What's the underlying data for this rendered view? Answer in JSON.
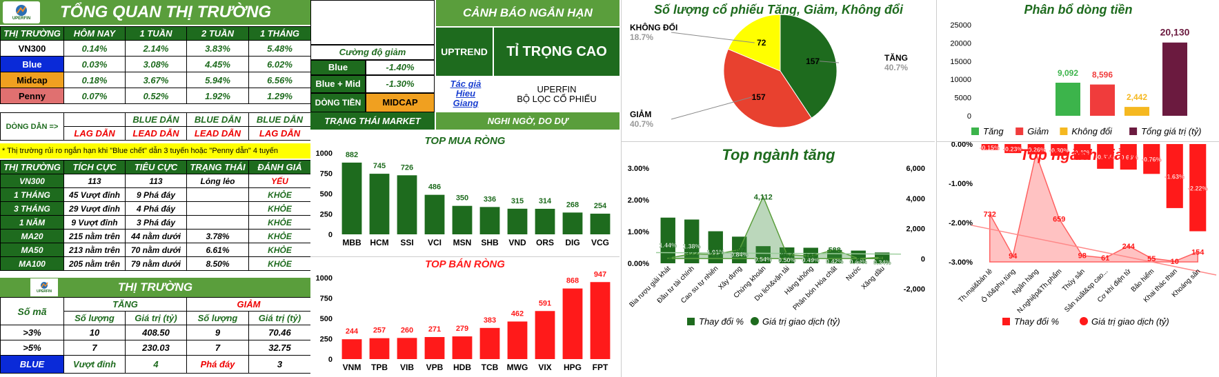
{
  "overview": {
    "logo": "UPERFIN",
    "title": "TỔNG QUAN THỊ TRƯỜNG",
    "headers": [
      "THỊ TRƯỜNG",
      "HÔM NAY",
      "1 TUẦN",
      "2 TUẦN",
      "1 THÁNG"
    ],
    "rows": [
      {
        "name": "VN300",
        "vals": [
          "0.14%",
          "2.14%",
          "3.83%",
          "5.48%"
        ],
        "color": "#ffffff",
        "text": "#000000"
      },
      {
        "name": "Blue",
        "vals": [
          "0.03%",
          "3.08%",
          "4.45%",
          "6.02%"
        ],
        "color": "#0a2ad8",
        "text": "#ffffff"
      },
      {
        "name": "Midcap",
        "vals": [
          "0.18%",
          "3.67%",
          "5.94%",
          "6.56%"
        ],
        "color": "#f0a020",
        "text": "#000000"
      },
      {
        "name": "Penny",
        "vals": [
          "0.07%",
          "0.52%",
          "1.92%",
          "1.29%"
        ],
        "color": "#e07070",
        "text": "#000000"
      }
    ],
    "leader_label": "DÒNG DẪN =>",
    "leader_top": [
      "",
      "BLUE DẪN",
      "BLUE DẪN",
      "BLUE DẪN"
    ],
    "leader_bottom": [
      "LAG DẪN",
      "LEAD DẪN",
      "LEAD DẪN",
      "LAG DẪN"
    ],
    "note": "* Thị trường rủi ro ngắn hạn khi \"Blue chết\" dẫn 3 tuyến hoặc \"Penny dẫn\" 4 tuyến"
  },
  "breadth": {
    "headers": [
      "THỊ TRƯỜNG",
      "TÍCH CỰC",
      "TIÊU CỰC",
      "TRẠNG THÁI",
      "ĐÁNH GIÁ"
    ],
    "rows": [
      [
        "VN300",
        "113",
        "113",
        "Lỏng lẻo",
        "YẾU"
      ],
      [
        "1 THÁNG",
        "45 Vượt đỉnh",
        "9 Phá đáy",
        "",
        "KHỎE"
      ],
      [
        "3 THÁNG",
        "29 Vượt đỉnh",
        "4 Phá đáy",
        "",
        "KHỎE"
      ],
      [
        "1 NĂM",
        "9 Vượt đỉnh",
        "3 Phá đáy",
        "",
        "KHỎE"
      ],
      [
        "MA20",
        "215 nằm trên",
        "44 nằm dưới",
        "3.78%",
        "KHỎE"
      ],
      [
        "MA50",
        "213 nằm trên",
        "70 nằm dưới",
        "6.61%",
        "KHỎE"
      ],
      [
        "MA100",
        "205 nằm trên",
        "79 nằm dưới",
        "8.50%",
        "KHỎE"
      ]
    ]
  },
  "market": {
    "logo": "UPERFIN",
    "title": "THỊ TRƯỜNG",
    "inc": "TĂNG",
    "dec": "GIẢM",
    "code_label": "Số mã",
    "sub": [
      "Số lượng",
      "Giá trị (tỷ)",
      "Số lượng",
      "Giá trị (tỷ)"
    ],
    "rows": [
      {
        "k": ">3%",
        "v": [
          "10",
          "408.50",
          "9",
          "70.46"
        ]
      },
      {
        "k": ">5%",
        "v": [
          "7",
          "230.03",
          "7",
          "32.75"
        ]
      }
    ],
    "blue": "BLUE",
    "vuot": "Vượt đỉnh",
    "vuot_v": "4",
    "pha": "Phá đáy",
    "pha_v": "3"
  },
  "warning": {
    "title": "CẢNH BÁO NGẮN HẠN",
    "uptrend": "UPTREND",
    "weight": "TỈ TRỌNG CAO",
    "intensity_label": "Cường độ giảm",
    "blue_label": "Blue",
    "blue_val": "-1.40%",
    "bm_label": "Blue + Mid",
    "bm_val": "-1.30%",
    "flow_label": "DÒNG TIỀN",
    "flow_val": "MIDCAP",
    "author1": "Tác giả",
    "author2": "Hieu",
    "author3": "Giang",
    "brand": "UPERFIN",
    "brand_sub": "BỘ LỌC CỔ PHIẾU",
    "status_label": "TRẠNG THÁI MARKET",
    "status_val": "NGHI NGỜ, DO DỰ"
  },
  "chart_data": [
    {
      "type": "bar",
      "title": "TOP MUA RÒNG",
      "categories": [
        "MBB",
        "HCM",
        "SSI",
        "VCI",
        "MSN",
        "SHB",
        "VND",
        "ORS",
        "DIG",
        "VCG"
      ],
      "values": [
        882,
        745,
        726,
        486,
        350,
        336,
        315,
        314,
        268,
        254
      ],
      "yticks": [
        0,
        250,
        500,
        750,
        1000
      ],
      "ylim": [
        0,
        1000
      ],
      "color": "#1e6b1e"
    },
    {
      "type": "bar",
      "title": "TOP BÁN RÒNG",
      "categories": [
        "VNM",
        "TPB",
        "VIB",
        "VPB",
        "HDB",
        "TCB",
        "MWG",
        "VIX",
        "HPG",
        "FPT"
      ],
      "values": [
        244,
        257,
        260,
        271,
        279,
        383,
        462,
        591,
        868,
        947
      ],
      "yticks": [
        0,
        250,
        500,
        750,
        1000
      ],
      "ylim": [
        0,
        1000
      ],
      "color": "#ff1a1a"
    },
    {
      "type": "pie",
      "title": "Số lượng cổ phiếu Tăng, Giảm, Không đổi",
      "slices": [
        {
          "label": "TĂNG",
          "value": 157,
          "pct": "40.7%",
          "color": "#1e6b1e"
        },
        {
          "label": "GIẢM",
          "value": 157,
          "pct": "40.7%",
          "color": "#e8412f"
        },
        {
          "label": "KHÔNG ĐỔI",
          "value": 72,
          "pct": "18.7%",
          "color": "#ffff00"
        }
      ]
    },
    {
      "type": "bar",
      "title": "Phân bổ dòng tiền",
      "categories": [
        "Tăng",
        "Giảm",
        "Không đổi",
        "Tổng giá trị (tỷ)"
      ],
      "values": [
        9092,
        8596,
        2442,
        20130
      ],
      "labels": [
        "9,092",
        "8,596",
        "2,442",
        "20,130"
      ],
      "colors": [
        "#3cb44b",
        "#f03c3c",
        "#f5b820",
        "#6b1a3f"
      ],
      "yticks": [
        "0",
        "5000",
        "10000",
        "15000",
        "20000",
        "25000"
      ],
      "ylim": [
        0,
        25000
      ]
    },
    {
      "type": "bar",
      "title": "Top ngành tăng",
      "categories": [
        "Bia rượu giải khát",
        "Đầu tư tài chính",
        "Cao su tự nhiên",
        "Xây dựng",
        "Chứng khoán",
        "Du lịch&vận tải",
        "Hàng không",
        "Phân bón Hóa chất",
        "Nước",
        "Xăng dầu"
      ],
      "values": [
        1.44,
        1.38,
        1.01,
        0.84,
        0.54,
        0.5,
        0.49,
        0.42,
        0.4,
        0.34
      ],
      "pct_labels": [
        "1.44%",
        "1.38%",
        "1.01%",
        "0.84%",
        "0.54%",
        "0.50%",
        "0.49%",
        "0.42%",
        "0.40%",
        "0.34%"
      ],
      "values2": [
        28,
        322,
        277,
        597,
        4112,
        267,
        165,
        588,
        5,
        97
      ],
      "labels2": [
        "28",
        "322",
        "277",
        "597",
        "4,112",
        "267",
        "165",
        "588",
        "5",
        "97"
      ],
      "yticks": [
        "0.00%",
        "1.00%",
        "2.00%",
        "3.00%"
      ],
      "y2ticks": [
        "-2,000",
        "0",
        "2,000",
        "4,000",
        "6,000"
      ],
      "ylim": [
        0,
        3
      ],
      "y2lim": [
        -2000,
        6000
      ],
      "legend": [
        "Thay đổi %",
        "Giá trị giao dịch (tỷ)"
      ]
    },
    {
      "type": "bar",
      "title": "Top ngành giảm",
      "categories": [
        "Th.mại&bán lẻ",
        "Ô tô&phụ tùng",
        "Ngân hàng",
        "N.nghiệp&Th.phẩm",
        "Thủy sản",
        "Sản xuất&sp cao...",
        "Cơ khí điện tử",
        "Bảo hiểm",
        "Khai thác than",
        "Khoáng sản"
      ],
      "values": [
        -0.15,
        -0.23,
        -0.26,
        -0.3,
        -0.4,
        -0.63,
        -0.65,
        -0.76,
        -1.63,
        -2.22
      ],
      "pct_labels": [
        "-0.15%",
        "-0.23%",
        "-0.26%",
        "-0.30%",
        "-0.40%",
        "-0.63%",
        "-0.65%",
        "-0.76%",
        "-1.63%",
        "-2.22%"
      ],
      "values2": [
        732,
        94,
        1652,
        659,
        98,
        61,
        244,
        55,
        10,
        154
      ],
      "labels2": [
        "732",
        "94",
        "",
        "659",
        "98",
        "61",
        "244",
        "55",
        "10",
        "154"
      ],
      "yticks": [
        "0.00%",
        "-1.00%",
        "-2.00%",
        "-3.00%"
      ],
      "ylim": [
        -3,
        0
      ],
      "legend": [
        "Thay đổi %",
        "Giá trị giao dịch (tỷ)"
      ]
    }
  ]
}
